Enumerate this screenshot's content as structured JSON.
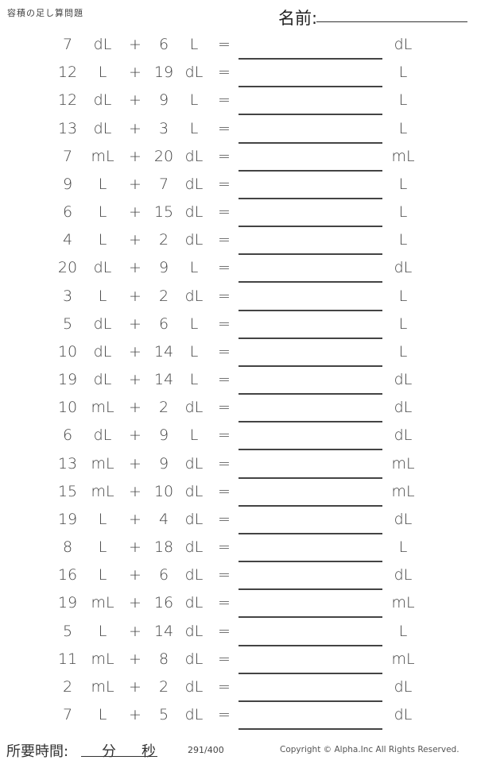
{
  "header": {
    "title": "容積の足し算問題",
    "name_label": "名前:"
  },
  "problems": [
    {
      "a": "7",
      "ua": "dL",
      "b": "6",
      "ub": "L",
      "ans_unit": "dL"
    },
    {
      "a": "12",
      "ua": "L",
      "b": "19",
      "ub": "dL",
      "ans_unit": "L"
    },
    {
      "a": "12",
      "ua": "dL",
      "b": "9",
      "ub": "L",
      "ans_unit": "L"
    },
    {
      "a": "13",
      "ua": "dL",
      "b": "3",
      "ub": "L",
      "ans_unit": "L"
    },
    {
      "a": "7",
      "ua": "mL",
      "b": "20",
      "ub": "dL",
      "ans_unit": "mL"
    },
    {
      "a": "9",
      "ua": "L",
      "b": "7",
      "ub": "dL",
      "ans_unit": "L"
    },
    {
      "a": "6",
      "ua": "L",
      "b": "15",
      "ub": "dL",
      "ans_unit": "L"
    },
    {
      "a": "4",
      "ua": "L",
      "b": "2",
      "ub": "dL",
      "ans_unit": "L"
    },
    {
      "a": "20",
      "ua": "dL",
      "b": "9",
      "ub": "L",
      "ans_unit": "dL"
    },
    {
      "a": "3",
      "ua": "L",
      "b": "2",
      "ub": "dL",
      "ans_unit": "L"
    },
    {
      "a": "5",
      "ua": "dL",
      "b": "6",
      "ub": "L",
      "ans_unit": "L"
    },
    {
      "a": "10",
      "ua": "dL",
      "b": "14",
      "ub": "L",
      "ans_unit": "L"
    },
    {
      "a": "19",
      "ua": "dL",
      "b": "14",
      "ub": "L",
      "ans_unit": "dL"
    },
    {
      "a": "10",
      "ua": "mL",
      "b": "2",
      "ub": "dL",
      "ans_unit": "dL"
    },
    {
      "a": "6",
      "ua": "dL",
      "b": "9",
      "ub": "L",
      "ans_unit": "dL"
    },
    {
      "a": "13",
      "ua": "mL",
      "b": "9",
      "ub": "dL",
      "ans_unit": "mL"
    },
    {
      "a": "15",
      "ua": "mL",
      "b": "10",
      "ub": "dL",
      "ans_unit": "mL"
    },
    {
      "a": "19",
      "ua": "L",
      "b": "4",
      "ub": "dL",
      "ans_unit": "dL"
    },
    {
      "a": "8",
      "ua": "L",
      "b": "18",
      "ub": "dL",
      "ans_unit": "L"
    },
    {
      "a": "16",
      "ua": "L",
      "b": "6",
      "ub": "dL",
      "ans_unit": "dL"
    },
    {
      "a": "19",
      "ua": "mL",
      "b": "16",
      "ub": "dL",
      "ans_unit": "mL"
    },
    {
      "a": "5",
      "ua": "L",
      "b": "14",
      "ub": "dL",
      "ans_unit": "L"
    },
    {
      "a": "11",
      "ua": "mL",
      "b": "8",
      "ub": "dL",
      "ans_unit": "mL"
    },
    {
      "a": "2",
      "ua": "mL",
      "b": "2",
      "ub": "dL",
      "ans_unit": "dL"
    },
    {
      "a": "7",
      "ua": "L",
      "b": "5",
      "ub": "dL",
      "ans_unit": "dL"
    }
  ],
  "symbols": {
    "plus": "+",
    "equals": "="
  },
  "footer": {
    "time_label": "所要時間:",
    "minutes": "分",
    "seconds": "秒",
    "page": "291/400",
    "copyright": "Copyright © Alpha.Inc All Rights Reserved."
  }
}
